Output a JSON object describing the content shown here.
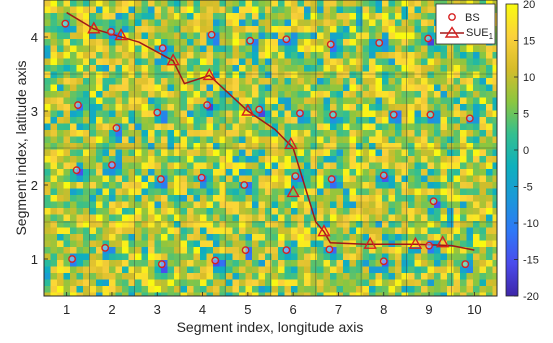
{
  "chart_data": {
    "type": "heatmap",
    "xlabel": "Segment index, longitude axis",
    "ylabel": "Segment index, latitude axis",
    "xlim": [
      0.5,
      10.5
    ],
    "ylim": [
      0.5,
      4.5
    ],
    "x_ticks": [
      "1",
      "2",
      "3",
      "4",
      "5",
      "6",
      "7",
      "8",
      "9",
      "10"
    ],
    "y_ticks": [
      "1",
      "2",
      "3",
      "4"
    ],
    "grid": true,
    "colorbar": {
      "min": -20,
      "max": 20,
      "ticks": [
        "20",
        "15",
        "10",
        "5",
        "0",
        "-5",
        "-10",
        "-15",
        "-20"
      ],
      "colormap": "parula",
      "stops": [
        "#3e26a8",
        "#4a4bec",
        "#2e78f7",
        "#1b98d9",
        "#0eb0bd",
        "#34bf8f",
        "#8cc63f",
        "#d6bc2a",
        "#fbd13c",
        "#f9fb0e"
      ]
    },
    "legend": {
      "placement": "top-right",
      "entries": [
        {
          "label": "BS",
          "marker": "circle"
        },
        {
          "label": "SUE",
          "subscript": "1",
          "marker": "triangle-line"
        }
      ]
    },
    "colors": {
      "marker": "#d62020",
      "path": "#a01818",
      "grid": "#3a3a3a"
    },
    "base_stations": [
      {
        "x": 0.97,
        "y": 4.18
      },
      {
        "x": 1.98,
        "y": 4.07
      },
      {
        "x": 3.12,
        "y": 3.85
      },
      {
        "x": 4.2,
        "y": 4.03
      },
      {
        "x": 5.05,
        "y": 3.95
      },
      {
        "x": 5.85,
        "y": 3.97
      },
      {
        "x": 6.83,
        "y": 3.9
      },
      {
        "x": 7.9,
        "y": 3.92
      },
      {
        "x": 8.98,
        "y": 3.98
      },
      {
        "x": 1.25,
        "y": 3.08
      },
      {
        "x": 2.1,
        "y": 2.77
      },
      {
        "x": 3.0,
        "y": 2.98
      },
      {
        "x": 4.1,
        "y": 3.08
      },
      {
        "x": 5.25,
        "y": 3.02
      },
      {
        "x": 6.15,
        "y": 2.97
      },
      {
        "x": 6.88,
        "y": 2.95
      },
      {
        "x": 8.22,
        "y": 2.95
      },
      {
        "x": 9.03,
        "y": 2.95
      },
      {
        "x": 9.9,
        "y": 2.9
      },
      {
        "x": 1.22,
        "y": 2.2
      },
      {
        "x": 2.0,
        "y": 2.27
      },
      {
        "x": 3.08,
        "y": 2.08
      },
      {
        "x": 3.98,
        "y": 2.1
      },
      {
        "x": 4.92,
        "y": 2.0
      },
      {
        "x": 6.05,
        "y": 2.12
      },
      {
        "x": 6.85,
        "y": 2.08
      },
      {
        "x": 8.0,
        "y": 2.13
      },
      {
        "x": 9.1,
        "y": 1.78
      },
      {
        "x": 1.12,
        "y": 1.0
      },
      {
        "x": 1.85,
        "y": 1.15
      },
      {
        "x": 3.1,
        "y": 0.93
      },
      {
        "x": 4.28,
        "y": 0.98
      },
      {
        "x": 4.95,
        "y": 1.12
      },
      {
        "x": 5.85,
        "y": 1.12
      },
      {
        "x": 6.8,
        "y": 1.13
      },
      {
        "x": 8.0,
        "y": 0.97
      },
      {
        "x": 9.0,
        "y": 1.18
      },
      {
        "x": 9.8,
        "y": 0.93
      }
    ],
    "sue_path": [
      {
        "x": 1.0,
        "y": 4.33
      },
      {
        "x": 1.6,
        "y": 4.11
      },
      {
        "x": 2.6,
        "y": 3.93
      },
      {
        "x": 3.35,
        "y": 3.68
      },
      {
        "x": 3.6,
        "y": 3.37
      },
      {
        "x": 4.15,
        "y": 3.48
      },
      {
        "x": 5.0,
        "y": 3.0
      },
      {
        "x": 5.6,
        "y": 2.75
      },
      {
        "x": 6.0,
        "y": 2.5
      },
      {
        "x": 6.5,
        "y": 1.5
      },
      {
        "x": 6.68,
        "y": 1.37
      },
      {
        "x": 6.82,
        "y": 1.22
      },
      {
        "x": 7.6,
        "y": 1.2
      },
      {
        "x": 8.7,
        "y": 1.2
      },
      {
        "x": 9.5,
        "y": 1.18
      },
      {
        "x": 10.0,
        "y": 1.12
      }
    ],
    "sue_markers": [
      {
        "x": 1.6,
        "y": 4.11
      },
      {
        "x": 2.2,
        "y": 4.02
      },
      {
        "x": 3.35,
        "y": 3.68
      },
      {
        "x": 4.15,
        "y": 3.48
      },
      {
        "x": 5.0,
        "y": 3.0
      },
      {
        "x": 5.95,
        "y": 2.55
      },
      {
        "x": 6.0,
        "y": 1.9
      },
      {
        "x": 6.68,
        "y": 1.37
      },
      {
        "x": 7.7,
        "y": 1.2
      },
      {
        "x": 8.7,
        "y": 1.2
      },
      {
        "x": 9.3,
        "y": 1.22
      }
    ]
  }
}
